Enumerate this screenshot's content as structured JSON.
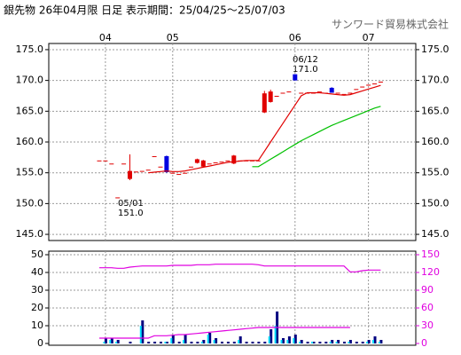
{
  "chart_data": [
    {
      "type": "candlestick",
      "title": "銀先物 26年04月限 日足 表示期間：25/04/25～25/07/03",
      "subtitle": "サンワード貿易株式会社",
      "annotations": [
        "05/01",
        "151.0",
        "06/12",
        "171.0"
      ],
      "categories": [
        null,
        "04",
        null,
        null,
        null,
        null,
        null,
        null,
        null,
        null,
        null,
        null,
        "05",
        null,
        null,
        null,
        null,
        null,
        null,
        null,
        null,
        null,
        null,
        null,
        null,
        null,
        null,
        null,
        null,
        null,
        null,
        null,
        "06",
        null,
        null,
        null,
        null,
        null,
        null,
        null,
        null,
        null,
        null,
        null,
        "07",
        null,
        null
      ],
      "open": [
        157,
        157,
        156.5,
        151,
        156.5,
        154,
        155.2,
        155.3,
        155.5,
        157.7,
        156,
        157.7,
        155,
        154.8,
        155,
        156,
        156.6,
        156,
        156.5,
        156.7,
        156.8,
        157,
        156.5,
        157,
        157,
        157,
        157,
        164.8,
        166.5,
        167.5,
        168,
        168.2,
        171,
        168,
        168,
        168,
        168.2,
        168,
        168.8,
        168,
        167.8,
        168,
        168.6,
        169,
        169.3,
        169.5,
        169.8
      ],
      "high": [
        157,
        157,
        156.5,
        151,
        156.5,
        158,
        155.2,
        155.3,
        155.5,
        157.7,
        156,
        157.8,
        155,
        154.8,
        155,
        156,
        157.3,
        157.1,
        156.5,
        156.7,
        156.8,
        157,
        157.9,
        157,
        157,
        157,
        157,
        168.3,
        168.5,
        167.5,
        168,
        168.2,
        171,
        168,
        168,
        168,
        168.2,
        168,
        168.9,
        168,
        167.8,
        168,
        168.6,
        169,
        169.3,
        169.5,
        169.8
      ],
      "low": [
        157,
        157,
        156.5,
        151,
        156.5,
        153.8,
        155.2,
        155.3,
        155.5,
        157.7,
        156,
        155,
        155,
        154.8,
        155,
        156,
        156.5,
        155.9,
        156.5,
        156.7,
        156.8,
        157,
        156.4,
        157,
        157,
        157,
        157,
        164.7,
        166.4,
        167.5,
        168,
        168.2,
        170,
        168,
        168,
        168,
        168.2,
        168,
        168,
        168,
        167.8,
        168,
        168.6,
        169,
        169.3,
        169.5,
        169.8
      ],
      "close": [
        157,
        157,
        156.5,
        151,
        156.5,
        155.3,
        155.2,
        155.3,
        155.5,
        157.7,
        156,
        155.1,
        155,
        154.8,
        155,
        156,
        157.2,
        157,
        156.5,
        156.7,
        156.8,
        157,
        157.8,
        157,
        157,
        157,
        157,
        167.9,
        168.2,
        167.5,
        168,
        168.2,
        170,
        168,
        168,
        168,
        168.2,
        168,
        168,
        168,
        167.8,
        168,
        168.6,
        169,
        169.3,
        169.5,
        169.8
      ],
      "up_color": "#e00000",
      "down_color": "#0000e0",
      "series": [
        {
          "color": "#e00000",
          "values": [
            null,
            null,
            null,
            null,
            null,
            null,
            null,
            null,
            155,
            155.1,
            155.2,
            155.3,
            155.2,
            155.2,
            155.3,
            155.5,
            155.7,
            155.9,
            156.1,
            156.3,
            156.5,
            156.7,
            156.8,
            156.9,
            157,
            157,
            157,
            158.5,
            160,
            161.5,
            163,
            164.5,
            166,
            167.5,
            168,
            168,
            168,
            167.9,
            167.8,
            167.7,
            167.6,
            167.7,
            168,
            168.3,
            168.6,
            168.9,
            169.2
          ]
        },
        {
          "color": "#00c000",
          "values": [
            null,
            null,
            null,
            null,
            null,
            null,
            null,
            null,
            null,
            null,
            null,
            null,
            null,
            null,
            null,
            null,
            null,
            null,
            null,
            null,
            null,
            null,
            null,
            null,
            null,
            156,
            156,
            156.6,
            157.2,
            157.8,
            158.4,
            159,
            159.6,
            160.2,
            160.7,
            161.2,
            161.7,
            162.2,
            162.7,
            163.1,
            163.5,
            163.9,
            164.3,
            164.7,
            165.1,
            165.5,
            165.8
          ]
        }
      ],
      "ylim": [
        144,
        176
      ],
      "yticks": [
        {
          "value": 145,
          "label": "145.0"
        },
        {
          "value": 150,
          "label": "150.0"
        },
        {
          "value": 155,
          "label": "155.0"
        },
        {
          "value": 160,
          "label": "160.0"
        },
        {
          "value": 165,
          "label": "165.0"
        },
        {
          "value": 170,
          "label": "170.0"
        },
        {
          "value": 175,
          "label": "175.0"
        }
      ],
      "grid": true
    },
    {
      "type": "bar",
      "series": [
        {
          "color": "#000080",
          "values": [
            0,
            3,
            3,
            2,
            0,
            1,
            0,
            13,
            1,
            1,
            1,
            1,
            5,
            1,
            5,
            1,
            1,
            2,
            6,
            3,
            1,
            1,
            1,
            4,
            1,
            1,
            1,
            1,
            8,
            18,
            3,
            4,
            5,
            2,
            1,
            1,
            1,
            1,
            2,
            2,
            1,
            2,
            1,
            1,
            2,
            4,
            2
          ]
        },
        {
          "color": "#00e0ff",
          "values": [
            0,
            1,
            2,
            1,
            0,
            0,
            0,
            10,
            0,
            0,
            0,
            1,
            3,
            0,
            2,
            0,
            0,
            1,
            5,
            2,
            0,
            0,
            0,
            2,
            0,
            0,
            0,
            0,
            4,
            10,
            2,
            2,
            3,
            1,
            0,
            1,
            0,
            0,
            1,
            1,
            0,
            1,
            0,
            0,
            1,
            2,
            1
          ]
        },
        {
          "color": "#e000e0",
          "axis": "y2",
          "line": true,
          "values": [
            128,
            128,
            128,
            127,
            127,
            129,
            130,
            131,
            131,
            131,
            131,
            131,
            132,
            132,
            132,
            132,
            133,
            133,
            133,
            134,
            134,
            134,
            134,
            134,
            134,
            134,
            133,
            131,
            131,
            131,
            131,
            131,
            131,
            131,
            131,
            131,
            131,
            131,
            131,
            131,
            131,
            121,
            121,
            123,
            124,
            124,
            124
          ]
        },
        {
          "color": "#e000e0",
          "axis": "y2",
          "line": true,
          "values": [
            9,
            9,
            9,
            9,
            9,
            9,
            9,
            9,
            9,
            13,
            13,
            13,
            14,
            15,
            15,
            16,
            17,
            18,
            19,
            20,
            21,
            22,
            23,
            24,
            25,
            26,
            27,
            27,
            27,
            27,
            27,
            27,
            27,
            27,
            27,
            27,
            27,
            27,
            27,
            27,
            27,
            27,
            null,
            null,
            null,
            null,
            null
          ]
        }
      ],
      "ylim": [
        -1,
        52
      ],
      "yticks": [
        0,
        10,
        20,
        30,
        40,
        50
      ],
      "y2lim": [
        -3,
        156
      ],
      "y2ticks": [
        0,
        30,
        60,
        90,
        120,
        150
      ],
      "y2color": "#e000e0",
      "grid": true
    }
  ]
}
